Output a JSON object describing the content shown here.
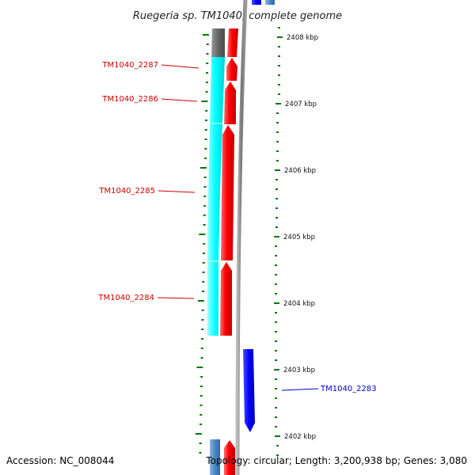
{
  "title": "Ruegeria sp. TM1040, complete genome",
  "footer": {
    "accession": "Accession: NC_008044",
    "topology": "Topology: circular; Length: 3,200,938 bp; Genes: 3,080"
  },
  "colors": {
    "backbone": "#888888",
    "forward_cds": "#ff0000",
    "reverse_cds": "#0000ff",
    "cyan_feature": "#00ffff",
    "grey_feature": "#666666",
    "steelblue_feature": "#4a86c5",
    "tick": "#007700",
    "forward_label": "#cc0000",
    "reverse_label": "#0000cc"
  },
  "scale": {
    "ticks": [
      {
        "label": "2408 kbp"
      },
      {
        "label": "2407 kbp"
      },
      {
        "label": "2406 kbp"
      },
      {
        "label": "2405 kbp"
      },
      {
        "label": "2404 kbp"
      },
      {
        "label": "2403 kbp"
      },
      {
        "label": "2402 kbp"
      }
    ]
  },
  "genes": [
    {
      "name": "TM1040_2287",
      "strand": "forward"
    },
    {
      "name": "TM1040_2286",
      "strand": "forward"
    },
    {
      "name": "TM1040_2285",
      "strand": "forward"
    },
    {
      "name": "TM1040_2284",
      "strand": "forward"
    },
    {
      "name": "TM1040_2283",
      "strand": "reverse"
    }
  ]
}
